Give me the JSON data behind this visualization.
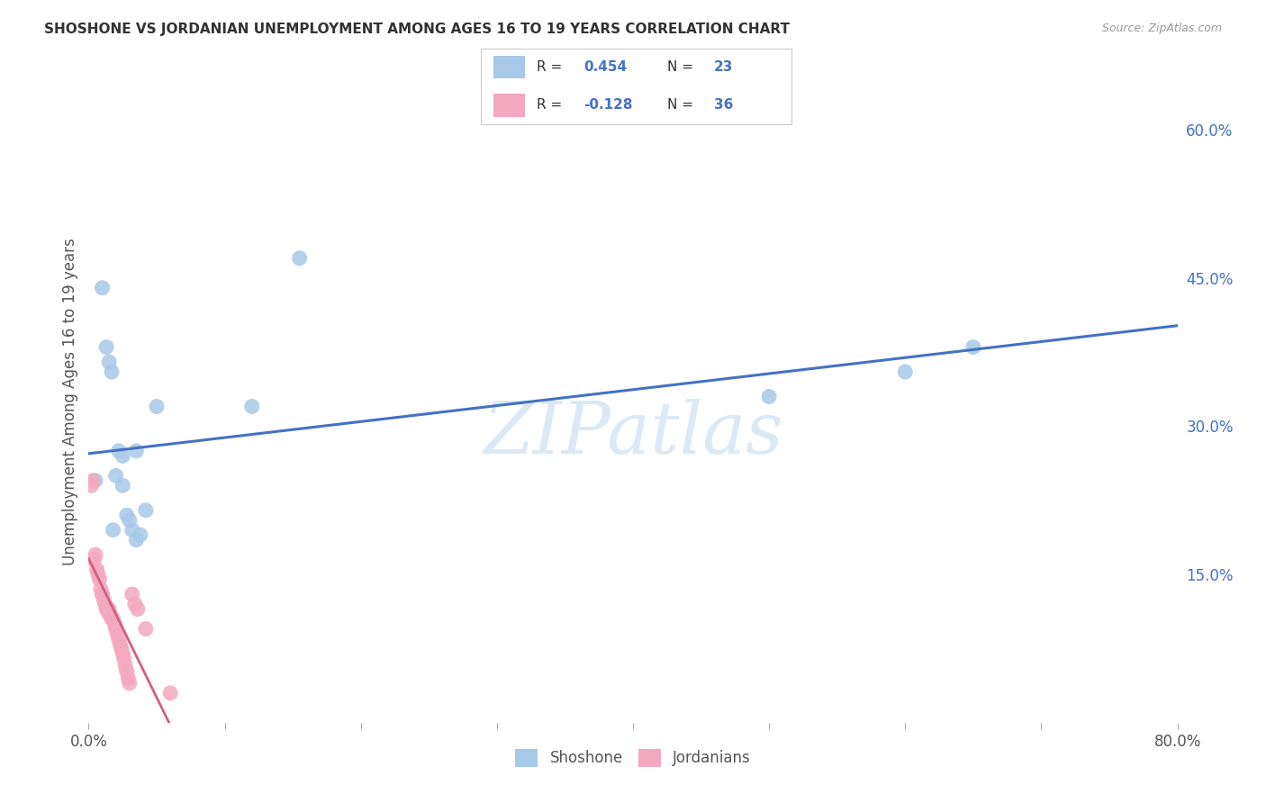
{
  "title": "SHOSHONE VS JORDANIAN UNEMPLOYMENT AMONG AGES 16 TO 19 YEARS CORRELATION CHART",
  "source": "Source: ZipAtlas.com",
  "ylabel": "Unemployment Among Ages 16 to 19 years",
  "watermark": "ZIPatlas",
  "xlim": [
    0.0,
    0.8
  ],
  "ylim": [
    0.0,
    0.65
  ],
  "xticks": [
    0.0,
    0.1,
    0.2,
    0.3,
    0.4,
    0.5,
    0.6,
    0.7,
    0.8
  ],
  "right_yticks": [
    0.15,
    0.3,
    0.45,
    0.6
  ],
  "right_yticklabels": [
    "15.0%",
    "30.0%",
    "45.0%",
    "60.0%"
  ],
  "shoshone_color": "#a8c8e8",
  "jordanian_color": "#f4a8c0",
  "shoshone_line_color": "#4472c4",
  "jordanian_line_color": "#d06080",
  "shoshone_R": 0.454,
  "shoshone_N": 23,
  "jordanian_R": -0.128,
  "jordanian_N": 36,
  "shoshone_x": [
    0.005,
    0.01,
    0.013,
    0.015,
    0.017,
    0.02,
    0.022,
    0.025,
    0.028,
    0.03,
    0.032,
    0.035,
    0.038,
    0.042,
    0.05,
    0.12,
    0.155,
    0.5,
    0.6,
    0.65,
    0.018,
    0.025,
    0.035
  ],
  "shoshone_y": [
    0.245,
    0.44,
    0.38,
    0.365,
    0.355,
    0.25,
    0.275,
    0.24,
    0.21,
    0.205,
    0.195,
    0.185,
    0.19,
    0.215,
    0.32,
    0.32,
    0.47,
    0.33,
    0.355,
    0.38,
    0.195,
    0.27,
    0.275
  ],
  "jordanian_x": [
    0.002,
    0.003,
    0.004,
    0.005,
    0.006,
    0.007,
    0.008,
    0.009,
    0.01,
    0.01,
    0.011,
    0.012,
    0.013,
    0.014,
    0.015,
    0.015,
    0.016,
    0.017,
    0.018,
    0.019,
    0.02,
    0.021,
    0.022,
    0.023,
    0.024,
    0.025,
    0.026,
    0.027,
    0.028,
    0.029,
    0.03,
    0.032,
    0.034,
    0.036,
    0.042,
    0.06
  ],
  "jordanian_y": [
    0.24,
    0.245,
    0.165,
    0.17,
    0.155,
    0.15,
    0.145,
    0.135,
    0.13,
    0.13,
    0.125,
    0.12,
    0.115,
    0.115,
    0.11,
    0.115,
    0.11,
    0.105,
    0.105,
    0.1,
    0.095,
    0.09,
    0.085,
    0.08,
    0.075,
    0.07,
    0.065,
    0.058,
    0.052,
    0.045,
    0.04,
    0.13,
    0.12,
    0.115,
    0.095,
    0.03
  ],
  "background_color": "#ffffff",
  "grid_color": "#cccccc"
}
